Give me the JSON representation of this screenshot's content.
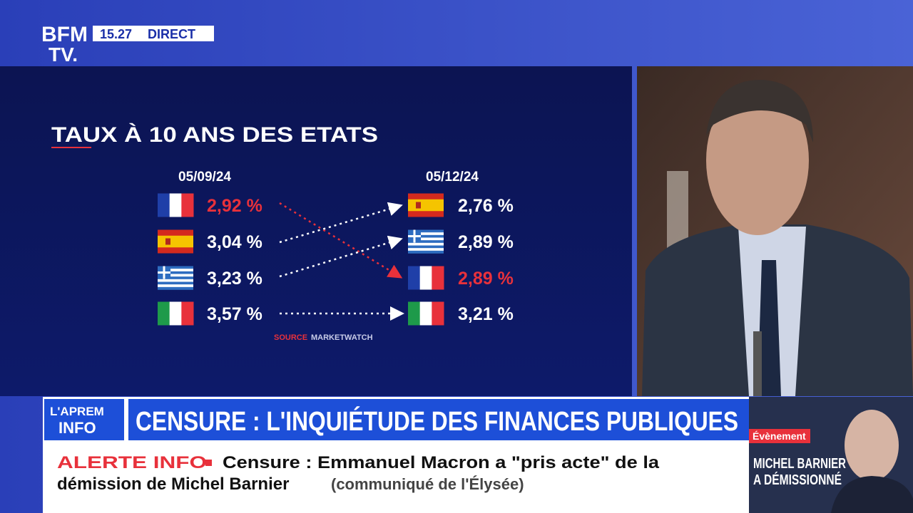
{
  "header": {
    "logo_top": "BFM",
    "logo_bottom": "TV.",
    "time": "15.27",
    "live": "DIRECT"
  },
  "graphic": {
    "title": "TAUX À 10 ANS DES ETATS",
    "date_left": "05/09/24",
    "date_right": "05/12/24",
    "rates_left": [
      "2,92 %",
      "3,04 %",
      "3,23 %",
      "3,57 %"
    ],
    "rates_right": [
      "2,76 %",
      "2,89 %",
      "2,89 %",
      "3,21 %"
    ],
    "source_label": "SOURCE",
    "source": "MARKETWATCH"
  },
  "banner": {
    "show_top": "L'APREM",
    "show_bottom": "INFO",
    "headline": "CENSURE : L'INQUIÉTUDE DES FINANCES PUBLIQUES"
  },
  "ticker": {
    "label": "ALERTE INFO",
    "lines": [
      "Censure : Emmanuel Macron a \"pris acte\" de la",
      "démission de Michel Barnier"
    ],
    "source": "(communiqué de l'Élysée)"
  },
  "side": {
    "tag": "Évènement",
    "lines": [
      "MICHEL BARNIER",
      "A DÉMISSIONNÉ"
    ]
  }
}
